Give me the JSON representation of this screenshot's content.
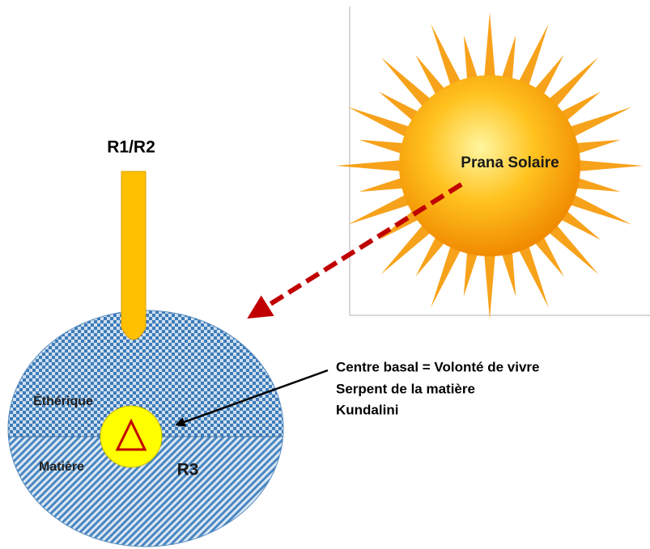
{
  "sun": {
    "label": "Prana Solaire"
  },
  "channel": {
    "label": "R1/R2"
  },
  "sphere": {
    "upper_label": "Éthérique",
    "lower_label": "Matière",
    "center_label": "R3"
  },
  "annotation": {
    "lines": [
      "Centre basal  = Volonté de vivre",
      "Serpent de la matière",
      "Kundalini"
    ]
  }
}
